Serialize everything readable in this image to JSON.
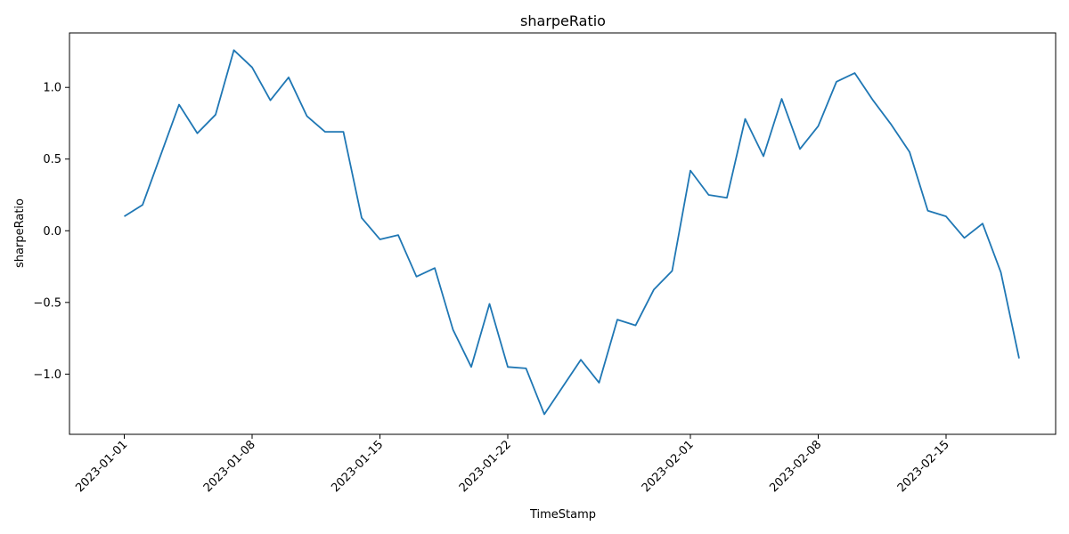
{
  "chart_data": {
    "type": "line",
    "title": "sharpeRatio",
    "xlabel": "TimeStamp",
    "ylabel": "sharpeRatio",
    "x_start": "2023-01-01",
    "x_ticks": [
      "2023-01-01",
      "2023-01-08",
      "2023-01-15",
      "2023-01-22",
      "2023-02-01",
      "2023-02-08",
      "2023-02-15"
    ],
    "y_ticks": [
      -1.0,
      -0.5,
      0.0,
      0.5,
      1.0
    ],
    "y_tick_labels": [
      "−1.0",
      "−0.5",
      "0.0",
      "0.5",
      "1.0"
    ],
    "ylim": [
      -1.42,
      1.38
    ],
    "xlim": [
      "2022-12-29",
      "2023-02-21"
    ],
    "grid": false,
    "series": [
      {
        "color": "#1f77b4",
        "x": [
          "2023-01-01",
          "2023-01-02",
          "2023-01-03",
          "2023-01-04",
          "2023-01-05",
          "2023-01-06",
          "2023-01-07",
          "2023-01-08",
          "2023-01-09",
          "2023-01-10",
          "2023-01-11",
          "2023-01-12",
          "2023-01-13",
          "2023-01-14",
          "2023-01-15",
          "2023-01-16",
          "2023-01-17",
          "2023-01-18",
          "2023-01-19",
          "2023-01-20",
          "2023-01-21",
          "2023-01-22",
          "2023-01-23",
          "2023-01-24",
          "2023-01-25",
          "2023-01-26",
          "2023-01-27",
          "2023-01-28",
          "2023-01-29",
          "2023-01-30",
          "2023-01-31",
          "2023-02-01",
          "2023-02-02",
          "2023-02-03",
          "2023-02-04",
          "2023-02-05",
          "2023-02-06",
          "2023-02-07",
          "2023-02-08",
          "2023-02-09",
          "2023-02-10",
          "2023-02-11",
          "2023-02-12",
          "2023-02-13",
          "2023-02-14",
          "2023-02-15",
          "2023-02-16",
          "2023-02-17",
          "2023-02-18",
          "2023-02-19"
        ],
        "values": [
          0.1,
          0.18,
          0.53,
          0.88,
          0.68,
          0.81,
          1.26,
          1.14,
          0.91,
          1.07,
          0.8,
          0.69,
          0.69,
          0.09,
          -0.06,
          -0.03,
          -0.32,
          -0.26,
          -0.69,
          -0.95,
          -0.51,
          -0.95,
          -0.96,
          -1.28,
          -1.09,
          -0.9,
          -1.06,
          -0.62,
          -0.66,
          -0.41,
          -0.28,
          0.42,
          0.25,
          0.23,
          0.78,
          0.52,
          0.92,
          0.57,
          0.73,
          1.04,
          1.1,
          0.91,
          0.74,
          0.55,
          0.14,
          0.1,
          -0.05,
          0.05,
          -0.29,
          -0.89
        ]
      }
    ]
  }
}
